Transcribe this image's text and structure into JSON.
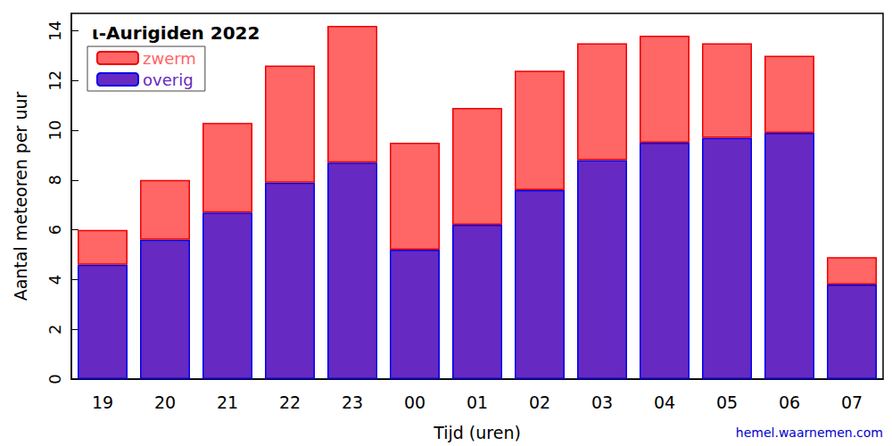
{
  "chart_data": {
    "type": "bar",
    "title": "ι-Aurigiden 2022",
    "x_label": "Tijd (uren)",
    "y_label": "Aantal meteoren per uur",
    "categories": [
      "19",
      "20",
      "21",
      "22",
      "23",
      "00",
      "01",
      "02",
      "03",
      "04",
      "05",
      "06",
      "07"
    ],
    "series": [
      {
        "name": "overig",
        "color": "#6629c1",
        "values": [
          4.6,
          5.6,
          6.7,
          7.9,
          8.7,
          5.2,
          6.2,
          7.6,
          8.8,
          9.5,
          9.7,
          9.9,
          3.8
        ]
      },
      {
        "name": "zwerm",
        "color": "#ff6666",
        "values": [
          1.4,
          2.4,
          3.6,
          4.7,
          5.5,
          4.3,
          4.7,
          4.8,
          4.7,
          4.3,
          3.8,
          3.1,
          1.1
        ]
      }
    ],
    "stacked": true,
    "ylim": [
      0,
      14.7
    ],
    "yticks": [
      0,
      2,
      4,
      6,
      8,
      10,
      12,
      14
    ],
    "grid": false,
    "legend": "upper left",
    "annotations": [
      {
        "text": "hemel.waarnemen.com"
      }
    ]
  }
}
